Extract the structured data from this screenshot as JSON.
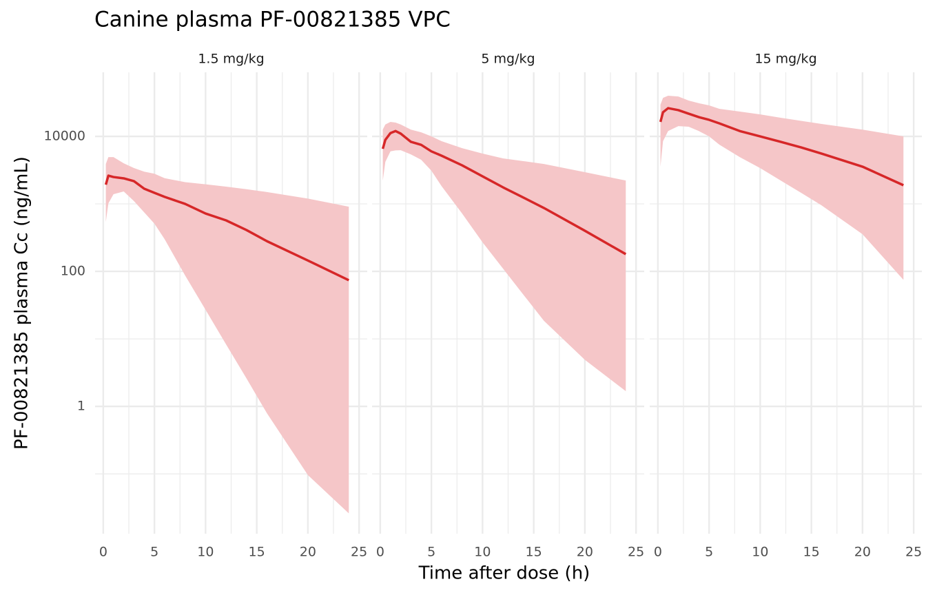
{
  "chart_data": {
    "type": "line",
    "title": "Canine plasma PF-00821385 VPC",
    "xlabel": "Time after dose (h)",
    "ylabel": "PF-00821385 plasma Cc (ng/mL)",
    "log_y": true,
    "grid": true,
    "xlim": [
      -0.8,
      25.8
    ],
    "xticks": [
      0,
      5,
      10,
      15,
      20,
      25
    ],
    "x_minor_ticks": [
      2.5,
      7.5,
      12.5,
      17.5,
      22.5
    ],
    "ylim": [
      0.013,
      89000
    ],
    "yticks": [
      1,
      100,
      10000
    ],
    "y_minor_ticks": [
      0.1,
      10,
      1000
    ],
    "line_color": "#d62728",
    "ribbon_color": "#f5c6c8",
    "panels": [
      {
        "title": "1.5 mg/kg",
        "x": [
          0.25,
          0.5,
          1,
          2,
          3,
          4,
          5,
          6,
          8,
          10,
          12,
          14,
          16,
          20,
          24
        ],
        "values": [
          1930,
          2620,
          2500,
          2390,
          2170,
          1680,
          1460,
          1270,
          1000,
          720,
          570,
          410,
          280,
          145,
          74
        ],
        "upper": [
          3900,
          4940,
          4940,
          4000,
          3400,
          3000,
          2800,
          2400,
          2100,
          1950,
          1800,
          1650,
          1500,
          1200,
          910
        ],
        "lower": [
          540,
          1020,
          1390,
          1530,
          1100,
          750,
          510,
          300,
          87,
          27,
          8.3,
          2.6,
          0.79,
          0.096,
          0.026
        ]
      },
      {
        "title": "5 mg/kg",
        "x": [
          0.25,
          0.5,
          1,
          1.5,
          2,
          3,
          4,
          5,
          6,
          8,
          10,
          12,
          14,
          16,
          20,
          24
        ],
        "values": [
          6550,
          8900,
          11200,
          12000,
          11000,
          8300,
          7500,
          6000,
          5170,
          3730,
          2560,
          1760,
          1240,
          870,
          400,
          180
        ],
        "upper": [
          12650,
          15000,
          16400,
          16000,
          15000,
          12600,
          11500,
          10000,
          8500,
          6700,
          5560,
          4720,
          4300,
          3900,
          2950,
          2220
        ],
        "lower": [
          2220,
          4200,
          6000,
          6200,
          6250,
          5400,
          4500,
          3100,
          1830,
          720,
          270,
          110,
          45,
          18.5,
          4.9,
          1.68
        ]
      },
      {
        "title": "15 mg/kg",
        "x": [
          0.25,
          0.5,
          1,
          2,
          3,
          4,
          5,
          6,
          8,
          10,
          12,
          14,
          16,
          20,
          24
        ],
        "values": [
          16400,
          22800,
          26200,
          24500,
          21700,
          19300,
          17600,
          15600,
          12000,
          10000,
          8300,
          6870,
          5560,
          3560,
          1890
        ],
        "upper": [
          29500,
          37200,
          40000,
          39000,
          34000,
          31000,
          28800,
          25600,
          23300,
          21200,
          18900,
          17000,
          15300,
          12600,
          10000
        ],
        "lower": [
          3560,
          8500,
          12000,
          14200,
          13900,
          12000,
          10000,
          7550,
          4940,
          3390,
          2220,
          1460,
          950,
          355,
          75
        ]
      }
    ]
  }
}
